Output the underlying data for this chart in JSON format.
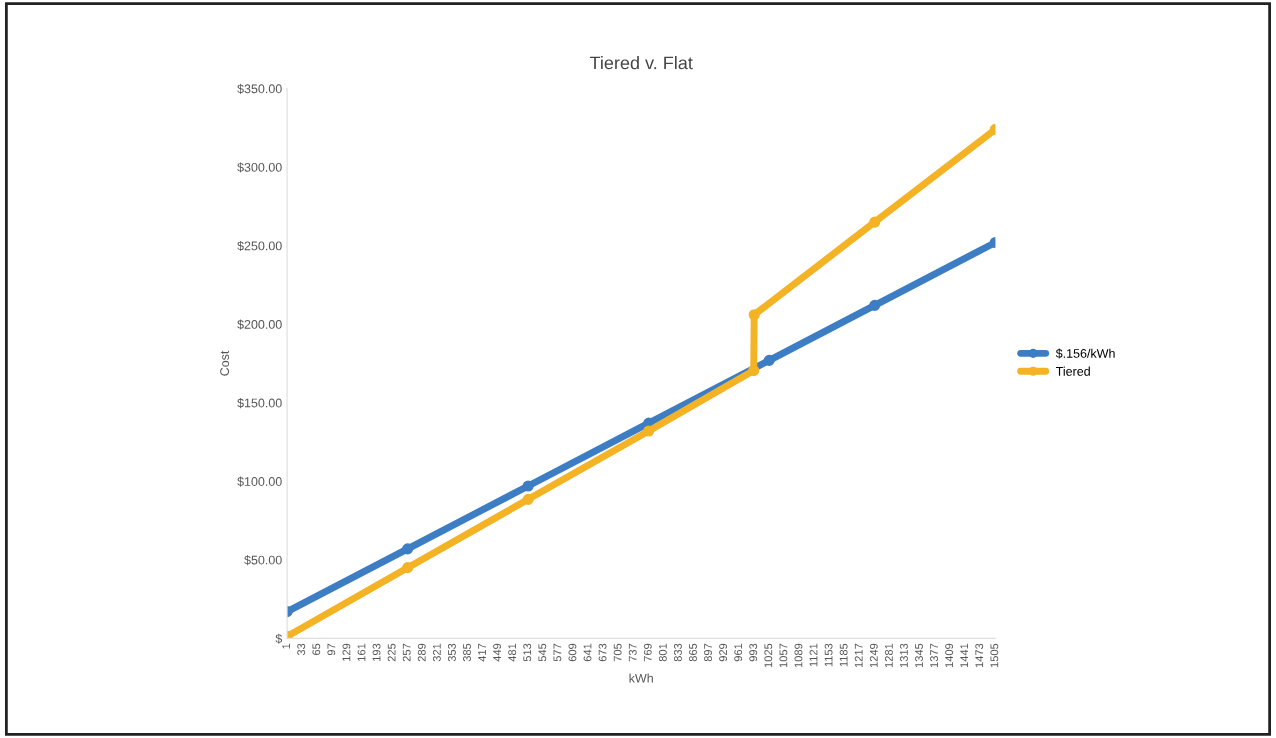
{
  "chart_data": {
    "type": "line",
    "title": "Tiered v. Flat",
    "xlabel": "kWh",
    "ylabel": "Cost",
    "x": [
      1,
      257,
      513,
      769,
      1025,
      1249,
      1505
    ],
    "series": [
      {
        "name": "$.156/kWh",
        "color": "#3c7dc4",
        "values": [
          17,
          57,
          97,
          137,
          177,
          212,
          252
        ]
      },
      {
        "name": "Tiered",
        "color": "#f4b325",
        "x": [
          1,
          257,
          513,
          769,
          992,
          993,
          1249,
          1505
        ],
        "values": [
          1.3,
          45,
          88.5,
          132,
          170.5,
          206,
          265,
          324
        ]
      }
    ],
    "xlim": [
      1,
      1505
    ],
    "xticks": [
      1,
      33,
      65,
      97,
      129,
      161,
      193,
      225,
      257,
      289,
      321,
      353,
      385,
      417,
      449,
      481,
      513,
      545,
      577,
      609,
      641,
      673,
      705,
      737,
      769,
      801,
      833,
      865,
      897,
      929,
      961,
      993,
      1025,
      1057,
      1089,
      1121,
      1153,
      1185,
      1217,
      1249,
      1281,
      1313,
      1345,
      1377,
      1409,
      1441,
      1473,
      1505
    ],
    "ylim": [
      0,
      350
    ],
    "yticks": [
      {
        "value": 0,
        "label": "$"
      },
      {
        "value": 50,
        "label": "$50.00"
      },
      {
        "value": 100,
        "label": "$100.00"
      },
      {
        "value": 150,
        "label": "$150.00"
      },
      {
        "value": 200,
        "label": "$200.00"
      },
      {
        "value": 250,
        "label": "$250.00"
      },
      {
        "value": 300,
        "label": "$300.00"
      },
      {
        "value": 350,
        "label": "$350.00"
      }
    ],
    "legend": "right",
    "marker": "circle",
    "line_style": "solid",
    "grid": false
  }
}
